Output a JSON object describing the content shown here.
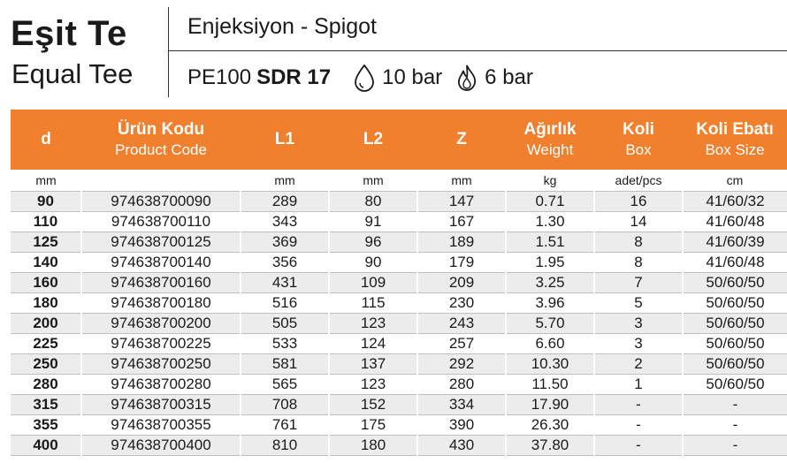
{
  "header": {
    "title_tr": "Eşit Te",
    "title_en": "Equal Tee",
    "subtitle": "Enjeksiyon - Spigot",
    "material": "PE100",
    "sdr": "SDR 17",
    "pressure_water": "10 bar",
    "pressure_gas": "6 bar",
    "water_icon": "water-drop-icon",
    "gas_icon": "flame-icon"
  },
  "colors": {
    "header_bg": "#f07f2e",
    "stripe": "#ececec"
  },
  "columns": [
    {
      "tr": "d",
      "en": ""
    },
    {
      "tr": "Ürün Kodu",
      "en": "Product Code"
    },
    {
      "tr": "L1",
      "en": ""
    },
    {
      "tr": "L2",
      "en": ""
    },
    {
      "tr": "Z",
      "en": ""
    },
    {
      "tr": "Ağırlık",
      "en": "Weight"
    },
    {
      "tr": "Koli",
      "en": "Box"
    },
    {
      "tr": "Koli Ebatı",
      "en": "Box Size"
    }
  ],
  "units": [
    "mm",
    "",
    "mm",
    "mm",
    "mm",
    "kg",
    "adet/pcs",
    "cm"
  ],
  "rows": [
    [
      "90",
      "974638700090",
      "289",
      "80",
      "147",
      "0.71",
      "16",
      "41/60/32"
    ],
    [
      "110",
      "974638700110",
      "343",
      "91",
      "167",
      "1.30",
      "14",
      "41/60/48"
    ],
    [
      "125",
      "974638700125",
      "369",
      "96",
      "189",
      "1.51",
      "8",
      "41/60/39"
    ],
    [
      "140",
      "974638700140",
      "356",
      "90",
      "179",
      "1.95",
      "8",
      "41/60/48"
    ],
    [
      "160",
      "974638700160",
      "431",
      "109",
      "209",
      "3.25",
      "7",
      "50/60/50"
    ],
    [
      "180",
      "974638700180",
      "516",
      "115",
      "230",
      "3.96",
      "5",
      "50/60/50"
    ],
    [
      "200",
      "974638700200",
      "505",
      "123",
      "243",
      "5.70",
      "3",
      "50/60/50"
    ],
    [
      "225",
      "974638700225",
      "533",
      "124",
      "257",
      "6.60",
      "3",
      "50/60/50"
    ],
    [
      "250",
      "974638700250",
      "581",
      "137",
      "292",
      "10.30",
      "2",
      "50/60/50"
    ],
    [
      "280",
      "974638700280",
      "565",
      "123",
      "280",
      "11.50",
      "1",
      "50/60/50"
    ],
    [
      "315",
      "974638700315",
      "708",
      "152",
      "334",
      "17.90",
      "-",
      "-"
    ],
    [
      "355",
      "974638700355",
      "761",
      "175",
      "390",
      "26.30",
      "-",
      "-"
    ],
    [
      "400",
      "974638700400",
      "810",
      "180",
      "430",
      "37.80",
      "-",
      "-"
    ]
  ]
}
